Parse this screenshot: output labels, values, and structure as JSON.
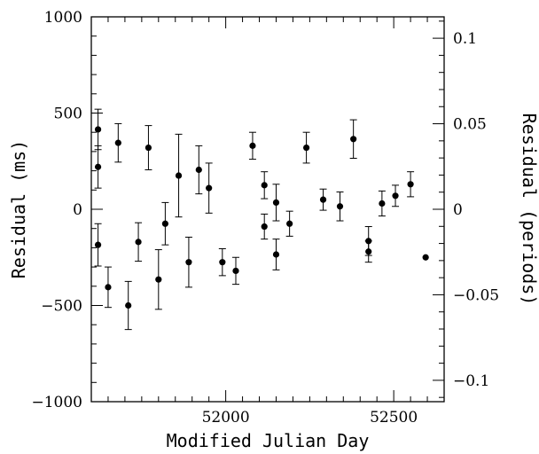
{
  "chart_data": {
    "type": "scatter",
    "title": "",
    "xlabel": "Modified Julian Day",
    "ylabel": "Residual (ms)",
    "y2label": "Residual (periods)",
    "xlim": [
      51600,
      52650
    ],
    "ylim": [
      -1000,
      1000
    ],
    "y2lim": [
      -0.1125,
      0.1125
    ],
    "x_ticks": [
      52000,
      52500
    ],
    "x_tick_labels": [
      "52000",
      "52500"
    ],
    "y_ticks": [
      -1000,
      -500,
      0,
      500,
      1000
    ],
    "y_tick_labels": [
      "−1000",
      "−500",
      "0",
      "500",
      "1000"
    ],
    "y2_ticks": [
      -0.1,
      -0.05,
      0,
      0.05,
      0.1
    ],
    "y2_tick_labels": [
      "−0.1",
      "−0.05",
      "0",
      "0.05",
      "0.1"
    ],
    "grid": false,
    "series": [
      {
        "points": [
          {
            "x": 51620,
            "y": 415,
            "err": 105
          },
          {
            "x": 51620,
            "y": 220,
            "err": 110
          },
          {
            "x": 51620,
            "y": -185,
            "err": 110
          },
          {
            "x": 51650,
            "y": -405,
            "err": 105
          },
          {
            "x": 51680,
            "y": 345,
            "err": 100
          },
          {
            "x": 51710,
            "y": -500,
            "err": 125
          },
          {
            "x": 51740,
            "y": -170,
            "err": 100
          },
          {
            "x": 51770,
            "y": 320,
            "err": 115
          },
          {
            "x": 51800,
            "y": -365,
            "err": 155
          },
          {
            "x": 51820,
            "y": -75,
            "err": 110
          },
          {
            "x": 51860,
            "y": 175,
            "err": 215
          },
          {
            "x": 51890,
            "y": -275,
            "err": 130
          },
          {
            "x": 51920,
            "y": 205,
            "err": 125
          },
          {
            "x": 51950,
            "y": 110,
            "err": 130
          },
          {
            "x": 51990,
            "y": -275,
            "err": 70
          },
          {
            "x": 52030,
            "y": -320,
            "err": 70
          },
          {
            "x": 52080,
            "y": 330,
            "err": 70
          },
          {
            "x": 52115,
            "y": 125,
            "err": 70
          },
          {
            "x": 52115,
            "y": -90,
            "err": 65
          },
          {
            "x": 52150,
            "y": 35,
            "err": 95
          },
          {
            "x": 52150,
            "y": -235,
            "err": 80
          },
          {
            "x": 52190,
            "y": -75,
            "err": 65
          },
          {
            "x": 52240,
            "y": 320,
            "err": 80
          },
          {
            "x": 52290,
            "y": 50,
            "err": 55
          },
          {
            "x": 52340,
            "y": 15,
            "err": 75
          },
          {
            "x": 52380,
            "y": 365,
            "err": 100
          },
          {
            "x": 52425,
            "y": -165,
            "err": 75
          },
          {
            "x": 52425,
            "y": -220,
            "err": 55
          },
          {
            "x": 52465,
            "y": 30,
            "err": 65
          },
          {
            "x": 52505,
            "y": 70,
            "err": 55
          },
          {
            "x": 52550,
            "y": 130,
            "err": 65
          },
          {
            "x": 52595,
            "y": -250,
            "err": 0
          }
        ]
      }
    ]
  }
}
